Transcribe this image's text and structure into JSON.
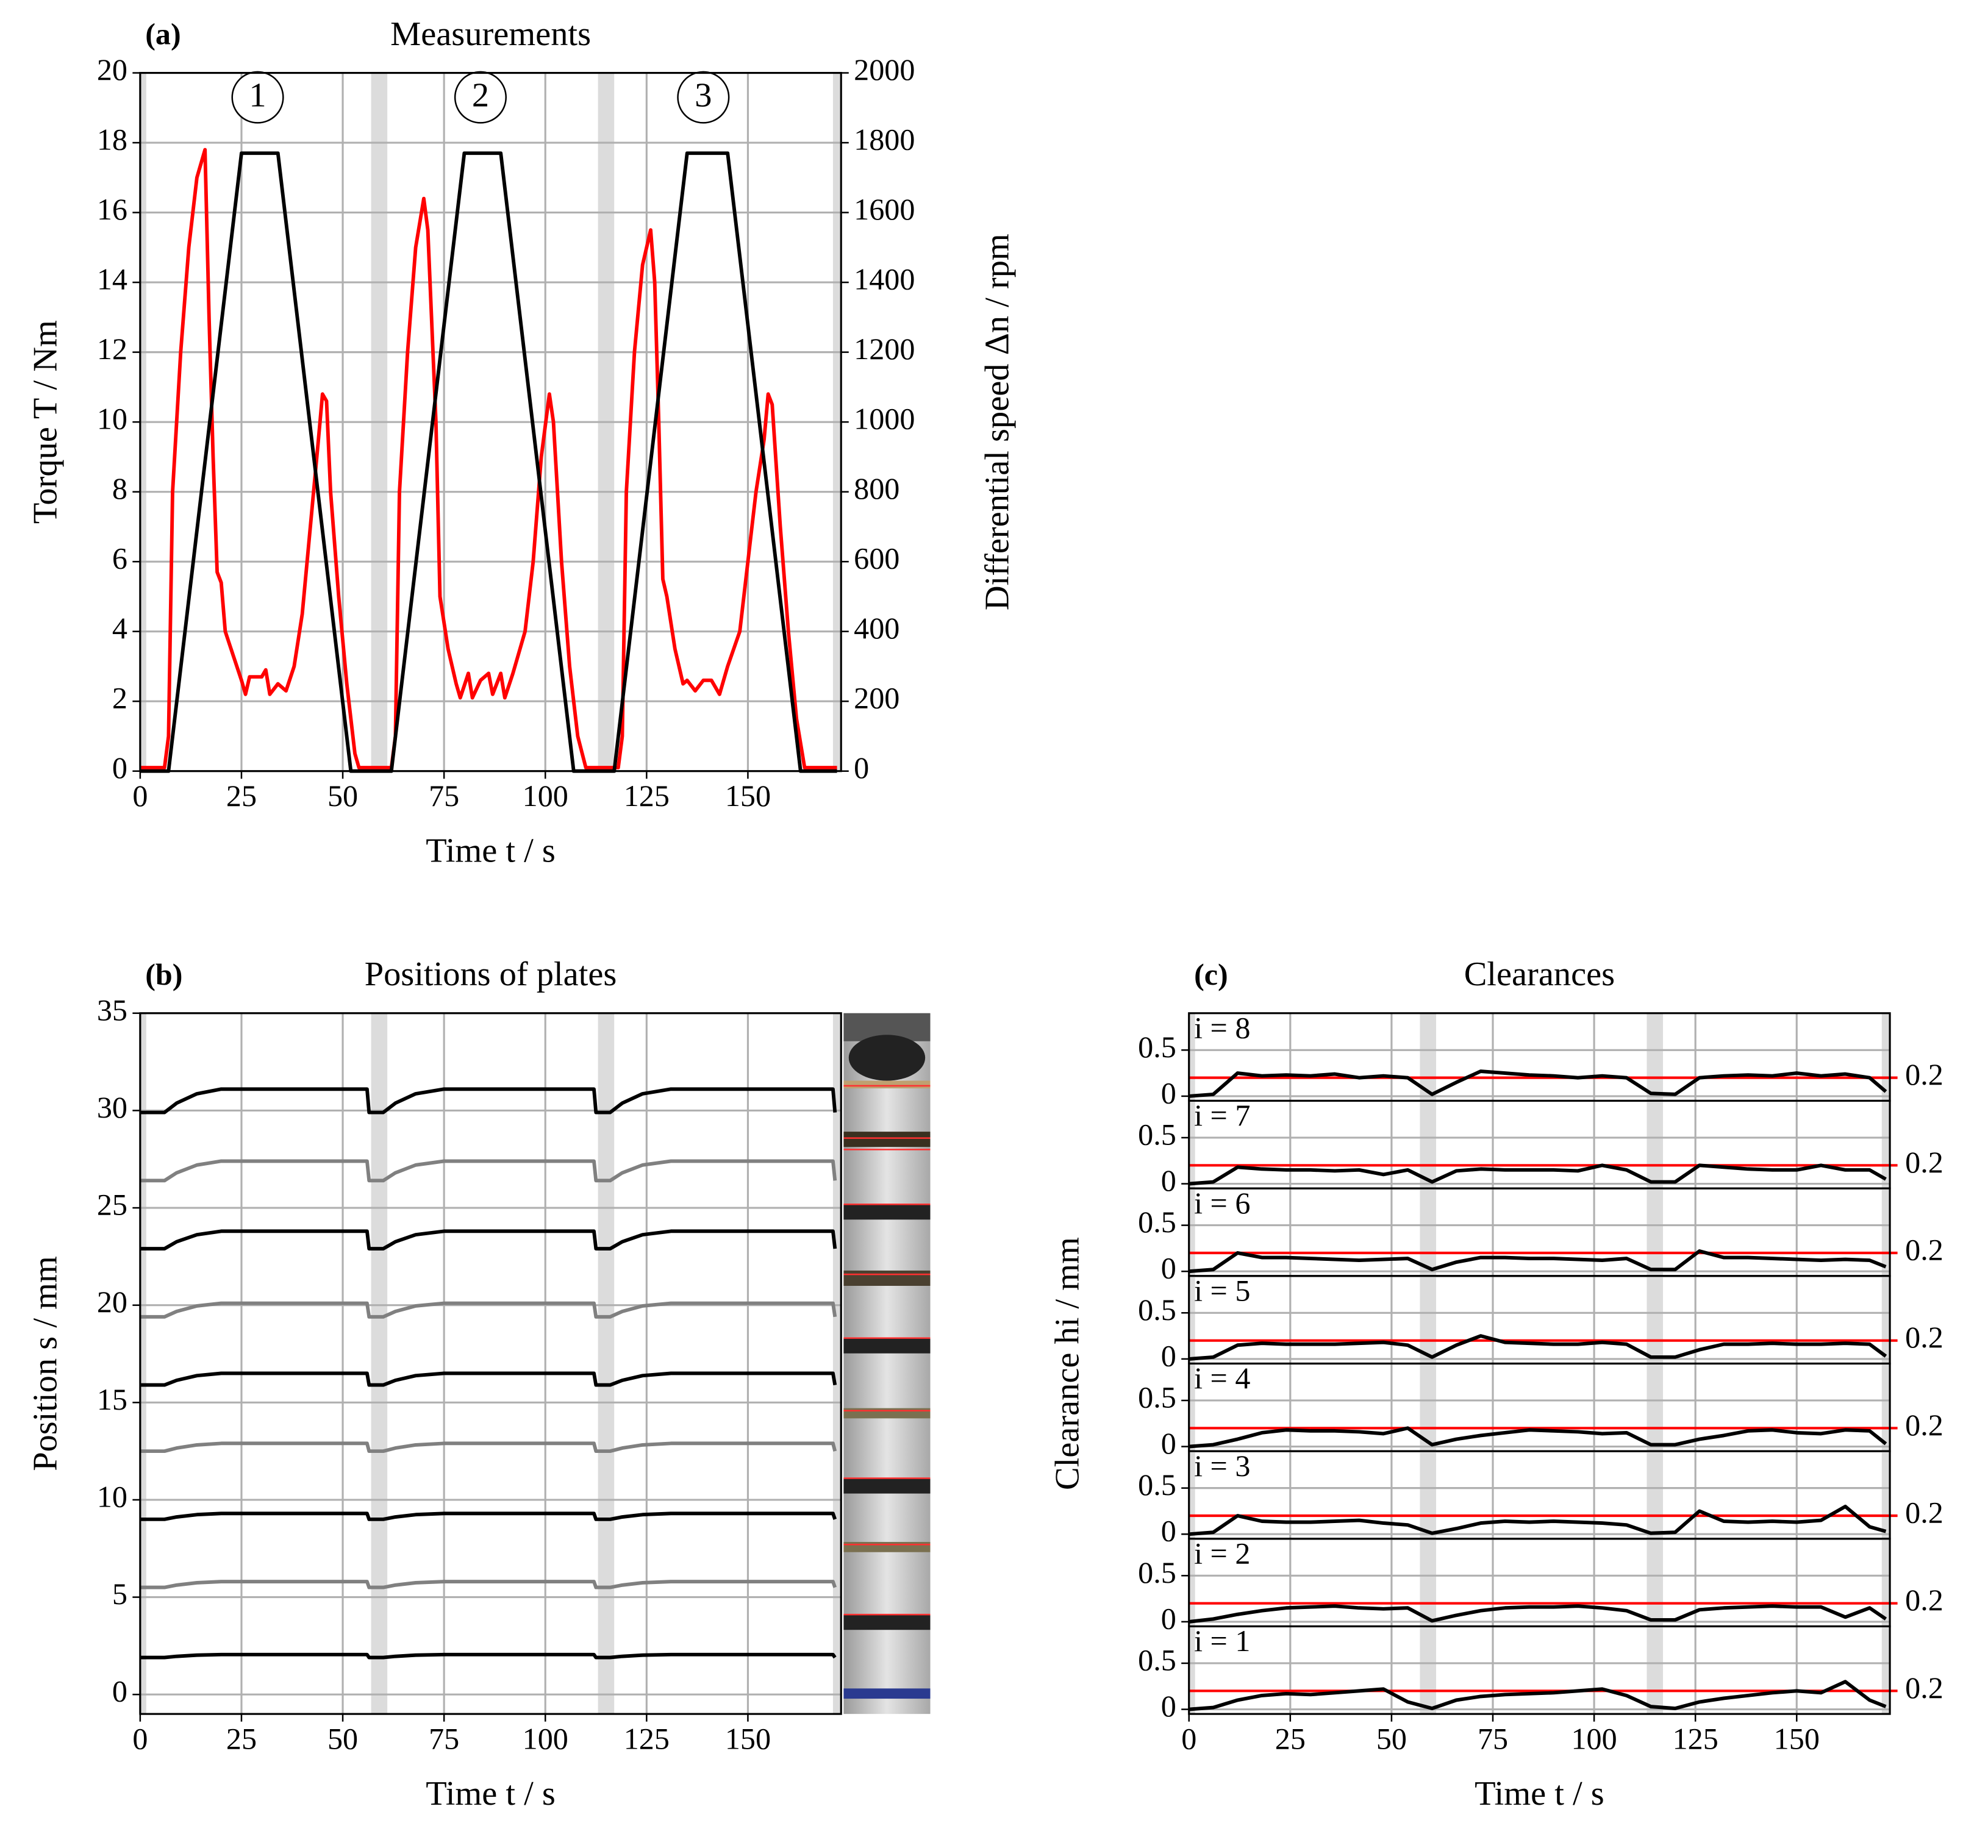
{
  "chart_data": [
    {
      "type": "line",
      "panel_label": "(a)",
      "title": "Measurements",
      "xlabel": "Time t / s",
      "ylabel": "Torque T / Nm",
      "y2label": "Differential speed Δn / rpm",
      "xlim": [
        0,
        173
      ],
      "xticks": [
        0,
        25,
        50,
        75,
        100,
        125,
        150
      ],
      "ylim": [
        0,
        20
      ],
      "yticks": [
        0,
        2,
        4,
        6,
        8,
        10,
        12,
        14,
        16,
        18,
        20
      ],
      "y2lim": [
        0,
        2000
      ],
      "y2ticks": [
        0,
        200,
        400,
        600,
        800,
        1000,
        1200,
        1400,
        1600,
        1800,
        2000
      ],
      "grid": true,
      "spans": [
        [
          0,
          1.5
        ],
        [
          57,
          61
        ],
        [
          113,
          117
        ],
        [
          171,
          173
        ]
      ],
      "annotations": [
        "1",
        "2",
        "3"
      ],
      "series": [
        {
          "color": "#ff0000",
          "x": [
            0,
            6,
            7,
            8,
            10,
            12,
            14,
            16,
            17,
            18,
            19,
            20,
            21,
            23,
            25,
            26,
            27,
            30,
            31,
            32,
            34,
            36,
            38,
            40,
            42,
            44,
            45,
            46,
            47,
            49,
            51,
            53,
            54,
            62,
            63,
            64,
            66,
            68,
            70,
            71,
            73,
            74,
            76,
            78,
            79,
            81,
            82,
            84,
            86,
            87,
            89,
            90,
            92,
            95,
            97,
            99,
            101,
            102,
            104,
            106,
            108,
            110,
            118,
            119,
            120,
            122,
            124,
            126,
            127,
            128,
            129,
            130,
            132,
            134,
            135,
            137,
            139,
            141,
            143,
            145,
            148,
            150,
            152,
            154,
            155,
            156,
            158,
            160,
            162,
            164,
            172
          ],
          "values": [
            0.1,
            0.1,
            1,
            8,
            12,
            15,
            17,
            17.8,
            13,
            9,
            5.7,
            5.4,
            4,
            3.3,
            2.6,
            2.2,
            2.7,
            2.7,
            2.9,
            2.2,
            2.5,
            2.3,
            3,
            4.5,
            7,
            9.5,
            10.8,
            10.6,
            8,
            5,
            2.5,
            0.5,
            0.1,
            0.1,
            1,
            8,
            12,
            15,
            16.4,
            15.5,
            10,
            5,
            3.5,
            2.5,
            2.1,
            2.8,
            2.1,
            2.6,
            2.8,
            2.2,
            2.8,
            2.1,
            2.8,
            4,
            6,
            9,
            10.8,
            10,
            6,
            3,
            1,
            0.1,
            0.1,
            1,
            8,
            12,
            14.5,
            15.5,
            14,
            10,
            5.5,
            5,
            3.5,
            2.5,
            2.6,
            2.3,
            2.6,
            2.6,
            2.2,
            3,
            4,
            6,
            8,
            9.5,
            10.8,
            10.5,
            7,
            4,
            1.5,
            0.1,
            0.1
          ]
        },
        {
          "color": "#000000",
          "axis": "y2",
          "x": [
            0,
            7,
            25,
            34,
            52,
            62,
            80,
            89,
            107,
            117,
            135,
            145,
            163,
            172
          ],
          "values": [
            0,
            0,
            1770,
            1770,
            0,
            0,
            1770,
            1770,
            0,
            0,
            1770,
            1770,
            0,
            0
          ]
        }
      ]
    },
    {
      "type": "line",
      "panel_label": "(b)",
      "title": "Positions of plates",
      "xlabel": "Time t / s",
      "ylabel": "Position s / mm",
      "xlim": [
        0,
        173
      ],
      "xticks": [
        0,
        25,
        50,
        75,
        100,
        125,
        150
      ],
      "ylim": [
        -1,
        35
      ],
      "yticks": [
        0,
        5,
        10,
        15,
        20,
        25,
        30,
        35
      ],
      "grid": true,
      "spans": [
        [
          0,
          1.5
        ],
        [
          57,
          61
        ],
        [
          113,
          117
        ],
        [
          171,
          173
        ]
      ],
      "x": [
        0,
        6,
        9,
        14,
        20,
        56,
        56.5,
        60,
        63,
        68,
        75,
        112,
        112.5,
        116,
        119,
        124,
        131,
        171,
        171.5
      ],
      "series": [
        {
          "color": "#000000",
          "values": [
            29.9,
            29.9,
            30.38,
            30.86,
            31.1,
            31.1,
            29.9,
            29.9,
            30.38,
            30.86,
            31.1,
            31.1,
            29.9,
            29.9,
            30.38,
            30.86,
            31.1,
            31.1,
            29.9
          ]
        },
        {
          "color": "#808080",
          "values": [
            26.4,
            26.4,
            26.8,
            27.2,
            27.4,
            27.4,
            26.4,
            26.4,
            26.8,
            27.2,
            27.4,
            27.4,
            26.4,
            26.4,
            26.8,
            27.2,
            27.4,
            27.4,
            26.4
          ]
        },
        {
          "color": "#000000",
          "values": [
            22.9,
            22.9,
            23.26,
            23.62,
            23.8,
            23.8,
            22.9,
            22.9,
            23.26,
            23.62,
            23.8,
            23.8,
            22.9,
            22.9,
            23.26,
            23.62,
            23.8,
            23.8,
            22.9
          ]
        },
        {
          "color": "#808080",
          "values": [
            19.4,
            19.4,
            19.68,
            19.96,
            20.1,
            20.1,
            19.4,
            19.4,
            19.68,
            19.96,
            20.1,
            20.1,
            19.4,
            19.4,
            19.68,
            19.96,
            20.1,
            20.1,
            19.4
          ]
        },
        {
          "color": "#000000",
          "values": [
            15.9,
            15.9,
            16.14,
            16.38,
            16.5,
            16.5,
            15.9,
            15.9,
            16.14,
            16.38,
            16.5,
            16.5,
            15.9,
            15.9,
            16.14,
            16.38,
            16.5,
            16.5,
            15.9
          ]
        },
        {
          "color": "#808080",
          "values": [
            12.5,
            12.5,
            12.66,
            12.82,
            12.9,
            12.9,
            12.5,
            12.5,
            12.66,
            12.82,
            12.9,
            12.9,
            12.5,
            12.5,
            12.66,
            12.82,
            12.9,
            12.9,
            12.5
          ]
        },
        {
          "color": "#000000",
          "values": [
            9,
            9,
            9.12,
            9.24,
            9.3,
            9.3,
            9,
            9,
            9.12,
            9.24,
            9.3,
            9.3,
            9,
            9,
            9.12,
            9.24,
            9.3,
            9.3,
            9
          ]
        },
        {
          "color": "#808080",
          "values": [
            5.5,
            5.5,
            5.62,
            5.74,
            5.8,
            5.8,
            5.5,
            5.5,
            5.62,
            5.74,
            5.8,
            5.8,
            5.5,
            5.5,
            5.62,
            5.74,
            5.8,
            5.8,
            5.5
          ]
        },
        {
          "color": "#000000",
          "values": [
            1.9,
            1.9,
            1.96,
            2.02,
            2.05,
            2.05,
            1.9,
            1.9,
            1.96,
            2.02,
            2.05,
            2.05,
            1.9,
            1.9,
            1.96,
            2.02,
            2.05,
            2.05,
            1.9
          ]
        }
      ]
    },
    {
      "type": "subplots",
      "panel_label": "(c)",
      "title": "Clearances",
      "xlabel": "Time t / s",
      "ylabel": "Clearance hi / mm",
      "xlim": [
        0,
        173
      ],
      "xticks": [
        0,
        25,
        50,
        75,
        100,
        125,
        150
      ],
      "ylim": [
        -0.05,
        0.9
      ],
      "yticks": [
        0,
        0.5
      ],
      "y2ticks": [
        0.2
      ],
      "y2_color": "#ff0000",
      "color": "#000000",
      "grid": true,
      "spans": [
        [
          0,
          1.5
        ],
        [
          57,
          61
        ],
        [
          113,
          117
        ],
        [
          171,
          173
        ]
      ],
      "x": [
        0,
        6,
        12,
        18,
        24,
        30,
        36,
        42,
        48,
        54,
        60,
        66,
        72,
        78,
        84,
        90,
        96,
        102,
        108,
        114,
        120,
        126,
        132,
        138,
        144,
        150,
        156,
        162,
        168,
        172
      ],
      "subplots": [
        {
          "label": "i = 8",
          "values": [
            0,
            0.02,
            0.25,
            0.22,
            0.23,
            0.22,
            0.24,
            0.2,
            0.22,
            0.2,
            0.02,
            0.15,
            0.27,
            0.25,
            0.23,
            0.22,
            0.2,
            0.22,
            0.2,
            0.03,
            0.02,
            0.2,
            0.22,
            0.23,
            0.22,
            0.25,
            0.22,
            0.24,
            0.2,
            0.05
          ]
        },
        {
          "label": "i = 7",
          "values": [
            0,
            0.02,
            0.18,
            0.16,
            0.15,
            0.15,
            0.14,
            0.15,
            0.1,
            0.15,
            0.02,
            0.14,
            0.16,
            0.15,
            0.15,
            0.15,
            0.14,
            0.2,
            0.15,
            0.02,
            0.02,
            0.2,
            0.18,
            0.16,
            0.15,
            0.15,
            0.2,
            0.15,
            0.15,
            0.05
          ]
        },
        {
          "label": "i = 6",
          "values": [
            0,
            0.02,
            0.2,
            0.15,
            0.15,
            0.14,
            0.13,
            0.12,
            0.13,
            0.14,
            0.02,
            0.1,
            0.15,
            0.15,
            0.14,
            0.14,
            0.13,
            0.12,
            0.14,
            0.02,
            0.02,
            0.22,
            0.15,
            0.15,
            0.14,
            0.13,
            0.12,
            0.13,
            0.12,
            0.05
          ]
        },
        {
          "label": "i = 5",
          "values": [
            0,
            0.02,
            0.15,
            0.17,
            0.16,
            0.16,
            0.16,
            0.17,
            0.18,
            0.15,
            0.02,
            0.15,
            0.25,
            0.18,
            0.17,
            0.16,
            0.16,
            0.18,
            0.16,
            0.02,
            0.02,
            0.1,
            0.16,
            0.16,
            0.17,
            0.16,
            0.16,
            0.17,
            0.16,
            0.03
          ]
        },
        {
          "label": "i = 4",
          "values": [
            0,
            0.02,
            0.08,
            0.15,
            0.18,
            0.17,
            0.17,
            0.16,
            0.14,
            0.2,
            0.02,
            0.08,
            0.12,
            0.15,
            0.18,
            0.17,
            0.16,
            0.14,
            0.15,
            0.02,
            0.02,
            0.08,
            0.12,
            0.17,
            0.18,
            0.15,
            0.14,
            0.18,
            0.17,
            0.03
          ]
        },
        {
          "label": "i = 3",
          "values": [
            0,
            0.02,
            0.2,
            0.14,
            0.13,
            0.13,
            0.14,
            0.15,
            0.12,
            0.1,
            0.01,
            0.06,
            0.12,
            0.14,
            0.13,
            0.14,
            0.13,
            0.12,
            0.1,
            0.01,
            0.02,
            0.25,
            0.14,
            0.13,
            0.14,
            0.13,
            0.15,
            0.3,
            0.08,
            0.03
          ]
        },
        {
          "label": "i = 2",
          "values": [
            0,
            0.03,
            0.08,
            0.12,
            0.15,
            0.16,
            0.17,
            0.15,
            0.14,
            0.15,
            0.01,
            0.07,
            0.12,
            0.15,
            0.16,
            0.16,
            0.17,
            0.15,
            0.12,
            0.02,
            0.02,
            0.13,
            0.15,
            0.16,
            0.17,
            0.16,
            0.16,
            0.05,
            0.15,
            0.03
          ]
        },
        {
          "label": "i = 1",
          "values": [
            0,
            0.02,
            0.1,
            0.15,
            0.17,
            0.16,
            0.18,
            0.2,
            0.22,
            0.08,
            0.01,
            0.1,
            0.14,
            0.16,
            0.17,
            0.18,
            0.2,
            0.22,
            0.15,
            0.03,
            0.01,
            0.08,
            0.12,
            0.15,
            0.18,
            0.2,
            0.18,
            0.3,
            0.1,
            0.03
          ]
        }
      ]
    }
  ]
}
